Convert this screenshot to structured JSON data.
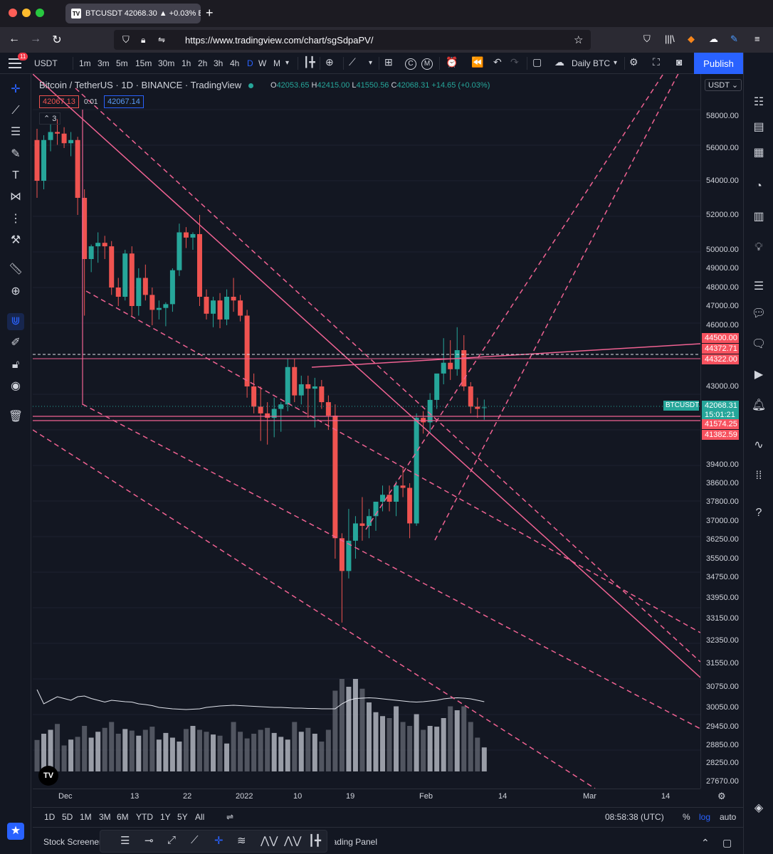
{
  "browser": {
    "tab_title": "BTCUSDT 42068.30 ▲ +0.03% B",
    "url": "https://www.tradingview.com/chart/sgSdpaPV/"
  },
  "toolbar": {
    "symbol": "USDT",
    "badge_count": "11",
    "timeframes": [
      "1m",
      "3m",
      "5m",
      "15m",
      "30m",
      "1h",
      "2h",
      "3h",
      "4h",
      "D",
      "W",
      "M"
    ],
    "active_timeframe": "D",
    "layout_label": "Daily BTC",
    "publish_label": "Publish"
  },
  "legend": {
    "title": "Bitcoin / TetherUS · 1D · BINANCE · TradingView",
    "open_label": "O",
    "open": "42053.65",
    "high_label": "H",
    "high": "42415.00",
    "low_label": "L",
    "low": "41550.56",
    "close_label": "C",
    "close": "42068.31",
    "change": "+14.65 (+0.03%)",
    "bid": "42067.13",
    "spread": "0.01",
    "ask": "42067.14",
    "collapsed_count": "3"
  },
  "price_axis": {
    "currency": "USDT",
    "labels": [
      "58000.00",
      "56000.00",
      "54000.00",
      "52000.00",
      "50000.00",
      "49000.00",
      "48000.00",
      "47000.00",
      "46000.00",
      "43000.00",
      "39400.00",
      "38600.00",
      "37800.00",
      "37000.00",
      "36250.00",
      "35500.00",
      "34750.00",
      "33950.00",
      "33150.00",
      "32350.00",
      "31550.00",
      "30750.00",
      "30050.00",
      "29450.00",
      "28850.00",
      "28250.00",
      "27670.00"
    ],
    "tags": [
      {
        "text": "44500.00",
        "color": "#f7525f"
      },
      {
        "text": "44372.71",
        "color": "#f7525f"
      },
      {
        "text": "44322.00",
        "color": "#f7525f"
      },
      {
        "text": "42068.31",
        "color": "#26a69a"
      },
      {
        "text": "15:01:21",
        "color": "#26a69a"
      },
      {
        "text": "41574.25",
        "color": "#f7525f"
      },
      {
        "text": "41382.59",
        "color": "#f7525f"
      }
    ],
    "symbol_tag": "BTCUSDT"
  },
  "time_axis": {
    "labels": [
      "Dec",
      "13",
      "22",
      "2022",
      "10",
      "19",
      "Feb",
      "14",
      "Mar",
      "14"
    ]
  },
  "range_bar": {
    "ranges": [
      "1D",
      "5D",
      "1M",
      "3M",
      "6M",
      "YTD",
      "1Y",
      "5Y",
      "All"
    ],
    "clock": "08:58:38 (UTC)",
    "percent": "%",
    "log": "log",
    "auto": "auto"
  },
  "bottom_panel": {
    "stock_screener": "Stock Screener",
    "trading_panel": "Trading Panel"
  },
  "chart_data": {
    "type": "candlestick",
    "title": "Bitcoin / TetherUS · 1D · BINANCE",
    "ylim": [
      27670,
      59000
    ],
    "candles": [
      [
        56500,
        57200,
        53000,
        54000
      ],
      [
        54000,
        56800,
        53500,
        56500
      ],
      [
        56500,
        57500,
        55800,
        57000
      ],
      [
        57000,
        57800,
        56200,
        56900
      ],
      [
        56900,
        57300,
        56000,
        56300
      ],
      [
        56300,
        57000,
        55500,
        56500
      ],
      [
        56500,
        56700,
        52000,
        53000
      ],
      [
        53000,
        53500,
        46500,
        49500
      ],
      [
        49500,
        50300,
        48800,
        50200
      ],
      [
        50200,
        51000,
        49300,
        50400
      ],
      [
        50400,
        50800,
        49500,
        50200
      ],
      [
        50200,
        50500,
        47600,
        48000
      ],
      [
        48000,
        48500,
        47000,
        47500
      ],
      [
        47500,
        50000,
        47300,
        49800
      ],
      [
        49800,
        50200,
        46500,
        47000
      ],
      [
        47000,
        49000,
        46500,
        48500
      ],
      [
        48500,
        49200,
        47300,
        47600
      ],
      [
        47600,
        48000,
        46000,
        46800
      ],
      [
        46800,
        47300,
        46300,
        46900
      ],
      [
        46900,
        47200,
        45900,
        47100
      ],
      [
        47100,
        49000,
        46700,
        48900
      ],
      [
        48900,
        51500,
        48600,
        51000
      ],
      [
        51000,
        51300,
        50100,
        50700
      ],
      [
        50700,
        51000,
        50000,
        50900
      ],
      [
        50900,
        52000,
        47000,
        47500
      ],
      [
        47500,
        47900,
        46300,
        46600
      ],
      [
        46600,
        47500,
        45800,
        47300
      ],
      [
        47300,
        47700,
        45700,
        46300
      ],
      [
        46300,
        47900,
        46000,
        47500
      ],
      [
        47500,
        48500,
        46700,
        47300
      ],
      [
        47300,
        47600,
        46200,
        46500
      ],
      [
        46500,
        46800,
        42500,
        43000
      ],
      [
        43000,
        43600,
        41800,
        42100
      ],
      [
        42100,
        43000,
        40700,
        41800
      ],
      [
        41800,
        42300,
        40500,
        41600
      ],
      [
        41600,
        42500,
        40900,
        42000
      ],
      [
        42000,
        42300,
        41200,
        42200
      ],
      [
        42200,
        44300,
        41900,
        43900
      ],
      [
        43900,
        44300,
        42300,
        42600
      ],
      [
        42600,
        43500,
        42200,
        43100
      ],
      [
        43100,
        43500,
        41600,
        42900
      ],
      [
        42900,
        43400,
        41400,
        43000
      ],
      [
        43000,
        43300,
        42000,
        42300
      ],
      [
        42300,
        42600,
        41300,
        41700
      ],
      [
        41700,
        42200,
        35500,
        36300
      ],
      [
        36300,
        36500,
        33000,
        35000
      ],
      [
        35000,
        37500,
        34700,
        36200
      ],
      [
        36200,
        37200,
        35500,
        36900
      ],
      [
        36900,
        38000,
        36200,
        36800
      ],
      [
        36800,
        37500,
        36300,
        37200
      ],
      [
        37200,
        37700,
        36600,
        37800
      ],
      [
        37800,
        38500,
        37400,
        38100
      ],
      [
        38100,
        38500,
        37400,
        37800
      ],
      [
        37800,
        38700,
        37200,
        38500
      ],
      [
        38500,
        39300,
        38000,
        38400
      ],
      [
        38400,
        38600,
        36300,
        36900
      ],
      [
        36900,
        41800,
        36800,
        41600
      ],
      [
        41600,
        41900,
        41100,
        41500
      ],
      [
        41500,
        42700,
        41100,
        42400
      ],
      [
        42400,
        43500,
        42000,
        43600
      ],
      [
        43600,
        44700,
        43100,
        44100
      ],
      [
        44100,
        44500,
        43300,
        43800
      ],
      [
        43800,
        45800,
        43500,
        44400
      ],
      [
        44400,
        45000,
        42800,
        43000
      ],
      [
        43000,
        43200,
        41800,
        42100
      ],
      [
        42100,
        42500,
        41600,
        42000
      ],
      [
        42053.65,
        42415,
        41550.56,
        42068.31
      ]
    ],
    "volume_ma_shown": true,
    "levels": [
      "44500.00",
      "44372.71",
      "44322.00",
      "41574.25",
      "41382.59"
    ]
  }
}
